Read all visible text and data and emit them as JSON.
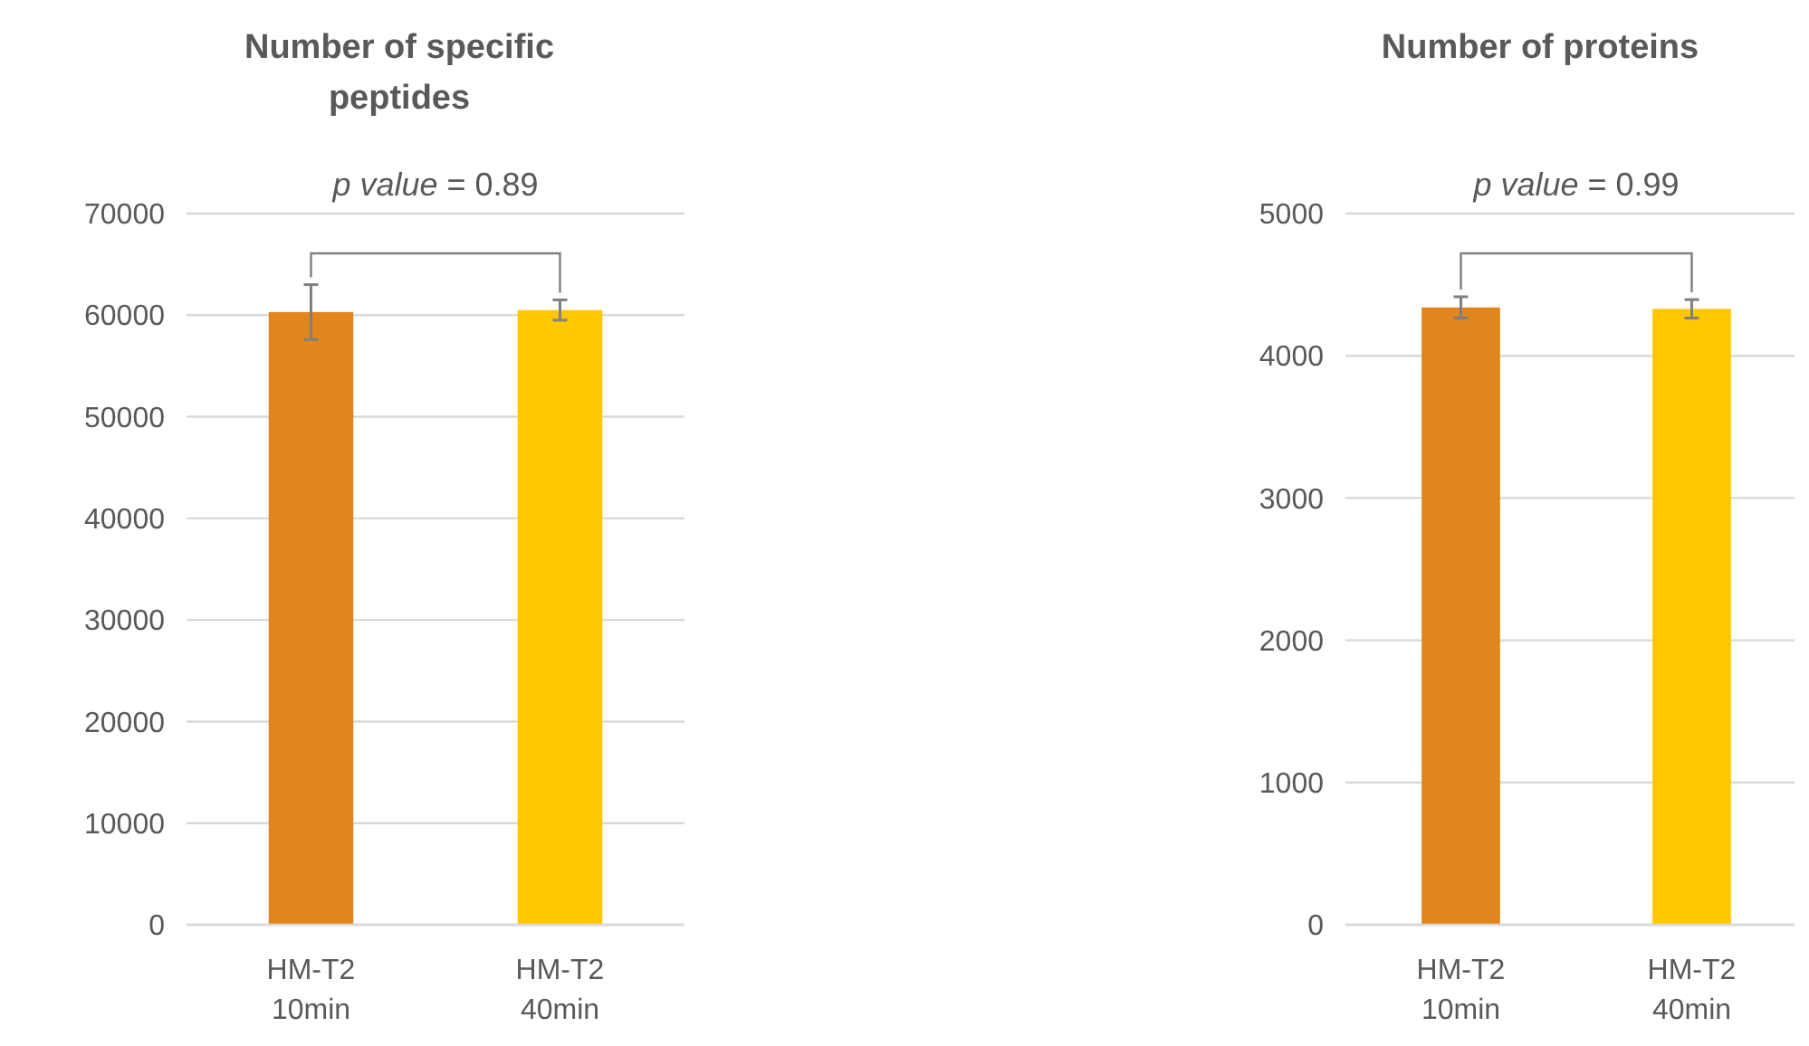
{
  "chart_data": [
    {
      "type": "bar",
      "title": "Number of specific peptides",
      "categories": [
        "HM-T2 10min",
        "HM-T2 40min"
      ],
      "values": [
        60300,
        60500
      ],
      "errors": [
        2700,
        1000
      ],
      "colors": [
        "#e0861c",
        "#ffc800"
      ],
      "ylim": [
        0,
        70000
      ],
      "yticks": [
        0,
        10000,
        20000,
        30000,
        40000,
        50000,
        60000,
        70000
      ],
      "grid": "y",
      "annotations": [
        "p value = 0.89"
      ]
    },
    {
      "type": "bar",
      "title": "Number of proteins",
      "categories": [
        "HM-T2 10min",
        "HM-T2 40min"
      ],
      "values": [
        4340,
        4330
      ],
      "errors": [
        75,
        65
      ],
      "colors": [
        "#e0861c",
        "#ffc800"
      ],
      "ylim": [
        0,
        5000
      ],
      "yticks": [
        0,
        1000,
        2000,
        3000,
        4000,
        5000
      ],
      "grid": "y",
      "annotations": [
        "p value = 0.99"
      ]
    }
  ]
}
